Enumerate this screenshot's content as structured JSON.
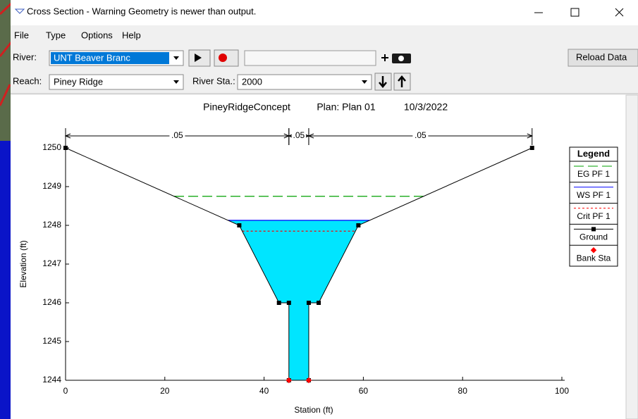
{
  "window": {
    "title": "Cross Section - Warning Geometry is newer than output."
  },
  "menu": [
    "File",
    "Type",
    "Options",
    "Help"
  ],
  "toolbar": {
    "river_label": "River:",
    "river": "UNT Beaver Branc",
    "reach_label": "Reach:",
    "reach": "Piney Ridge",
    "station_label": "River Sta.:",
    "station": "2000",
    "reload": "Reload Data"
  },
  "chart_data": {
    "type": "cross_section",
    "title": "PineyRidgeConcept",
    "plan": "Plan: Plan 01",
    "date": "10/3/2022",
    "x_label": "Station (ft)",
    "y_label": "Elevation (ft)",
    "xlim": [
      0,
      100
    ],
    "xticks": [
      0,
      20,
      40,
      60,
      80,
      100
    ],
    "ylim": [
      1244,
      1250
    ],
    "yticks": [
      1244,
      1245,
      1246,
      1247,
      1248,
      1249,
      1250
    ],
    "legend_title": "Legend",
    "water_levels": [
      {
        "name": "EG PF 1",
        "color": "#00a000",
        "value": 1248.75,
        "style": "dashed"
      },
      {
        "name": "WS PF 1",
        "color": "#0000ff",
        "value": 1248.13,
        "style": "solid",
        "fill": "#00e5ff"
      },
      {
        "name": "Crit PF 1",
        "color": "#ff0000",
        "value": 1247.85,
        "style": "dotted"
      }
    ],
    "ground": {
      "name": "Ground",
      "color": "#000000",
      "x": [
        0,
        35,
        43,
        45,
        45,
        49,
        49,
        51,
        59,
        94
      ],
      "values": [
        1250,
        1248,
        1246,
        1246,
        1244,
        1244,
        1246,
        1246,
        1248,
        1250
      ]
    },
    "bank_stations": {
      "name": "Bank Sta",
      "color": "#ff0000",
      "x": [
        45,
        49
      ],
      "values": [
        1244,
        1244
      ]
    },
    "mannings_n": [
      {
        "label": ".05",
        "from": 0,
        "to": 45
      },
      {
        "label": ".05",
        "from": 45,
        "to": 49
      },
      {
        "label": ".05",
        "from": 49,
        "to": 94
      }
    ]
  }
}
